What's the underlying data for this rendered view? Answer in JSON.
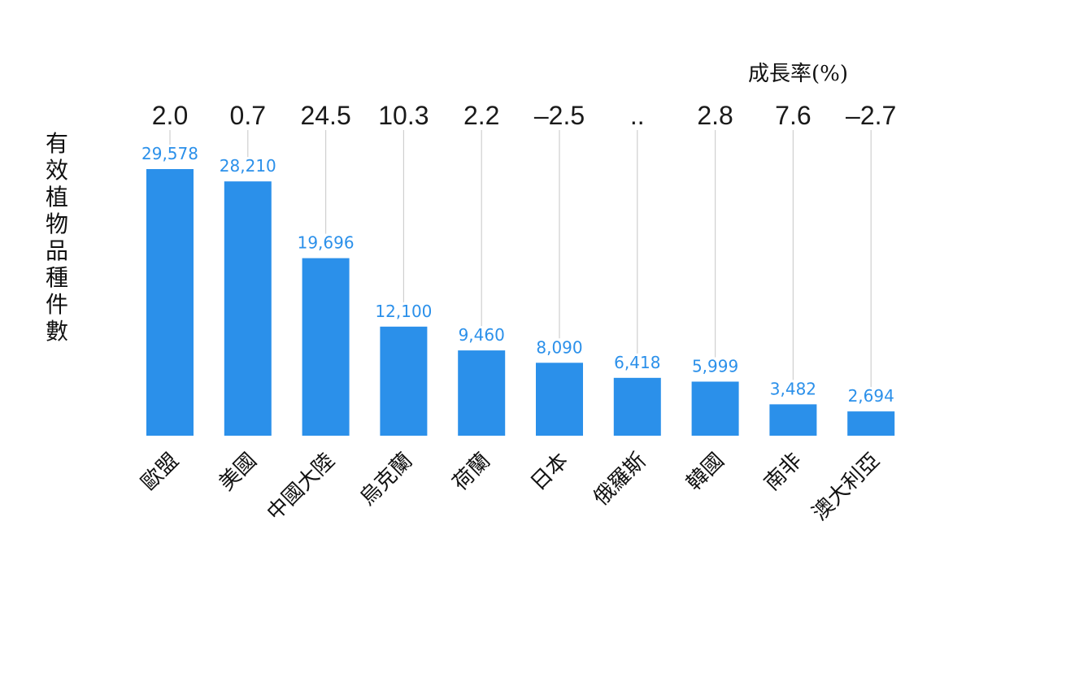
{
  "chart_data": {
    "type": "bar",
    "ylabel": "有效植物品種件數",
    "growth_title": "成長率(%)",
    "categories": [
      "歐盟",
      "美國",
      "中國大陸",
      "烏克蘭",
      "荷蘭",
      "日本",
      "俄羅斯",
      "韓國",
      "南非",
      "澳大利亞"
    ],
    "values": [
      29578,
      28210,
      19696,
      12100,
      9460,
      8090,
      6418,
      5999,
      3482,
      2694
    ],
    "value_labels": [
      "29,578",
      "28,210",
      "19,696",
      "12,100",
      "9,460",
      "8,090",
      "6,418",
      "5,999",
      "3,482",
      "2,694"
    ],
    "growth_rates": [
      "2.0",
      "0.7",
      "24.5",
      "10.3",
      "2.2",
      "–2.5",
      "..",
      "2.8",
      "7.6",
      "–2.7"
    ],
    "bar_color": "#2b90ea",
    "leader_line_color": "#cfcfcf",
    "grid": false
  }
}
